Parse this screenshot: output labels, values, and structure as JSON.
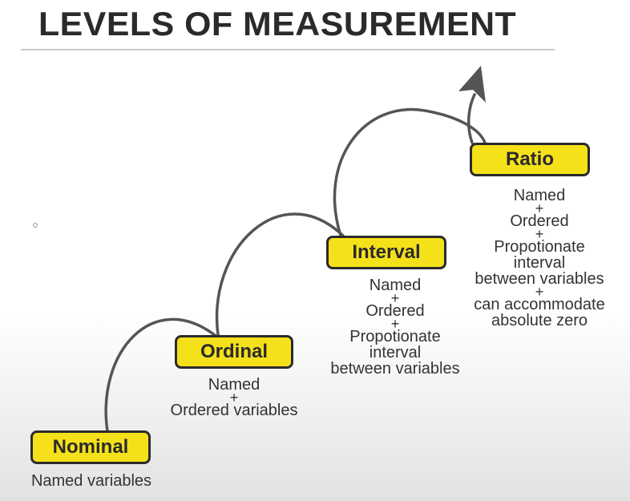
{
  "title": "LEVELS OF MEASUREMENT",
  "levels": [
    {
      "name": "Nominal",
      "lines": [
        "Named variables"
      ]
    },
    {
      "name": "Ordinal",
      "lines": [
        "Named",
        "+",
        "Ordered variables"
      ]
    },
    {
      "name": "Interval",
      "lines": [
        "Named",
        "+",
        "Ordered",
        "+",
        "Propotionate",
        "interval",
        "between variables"
      ]
    },
    {
      "name": "Ratio",
      "lines": [
        "Named",
        "+",
        "Ordered",
        "+",
        "Propotionate",
        "interval",
        "between variables",
        "+",
        "can accommodate",
        "absolute zero"
      ]
    }
  ],
  "colors": {
    "box_fill": "#f5e11a",
    "box_border": "#2b2b2b",
    "connector": "#555555",
    "title": "#2a2a2a"
  },
  "icons": {
    "arrow": "arrowhead-up-icon"
  }
}
